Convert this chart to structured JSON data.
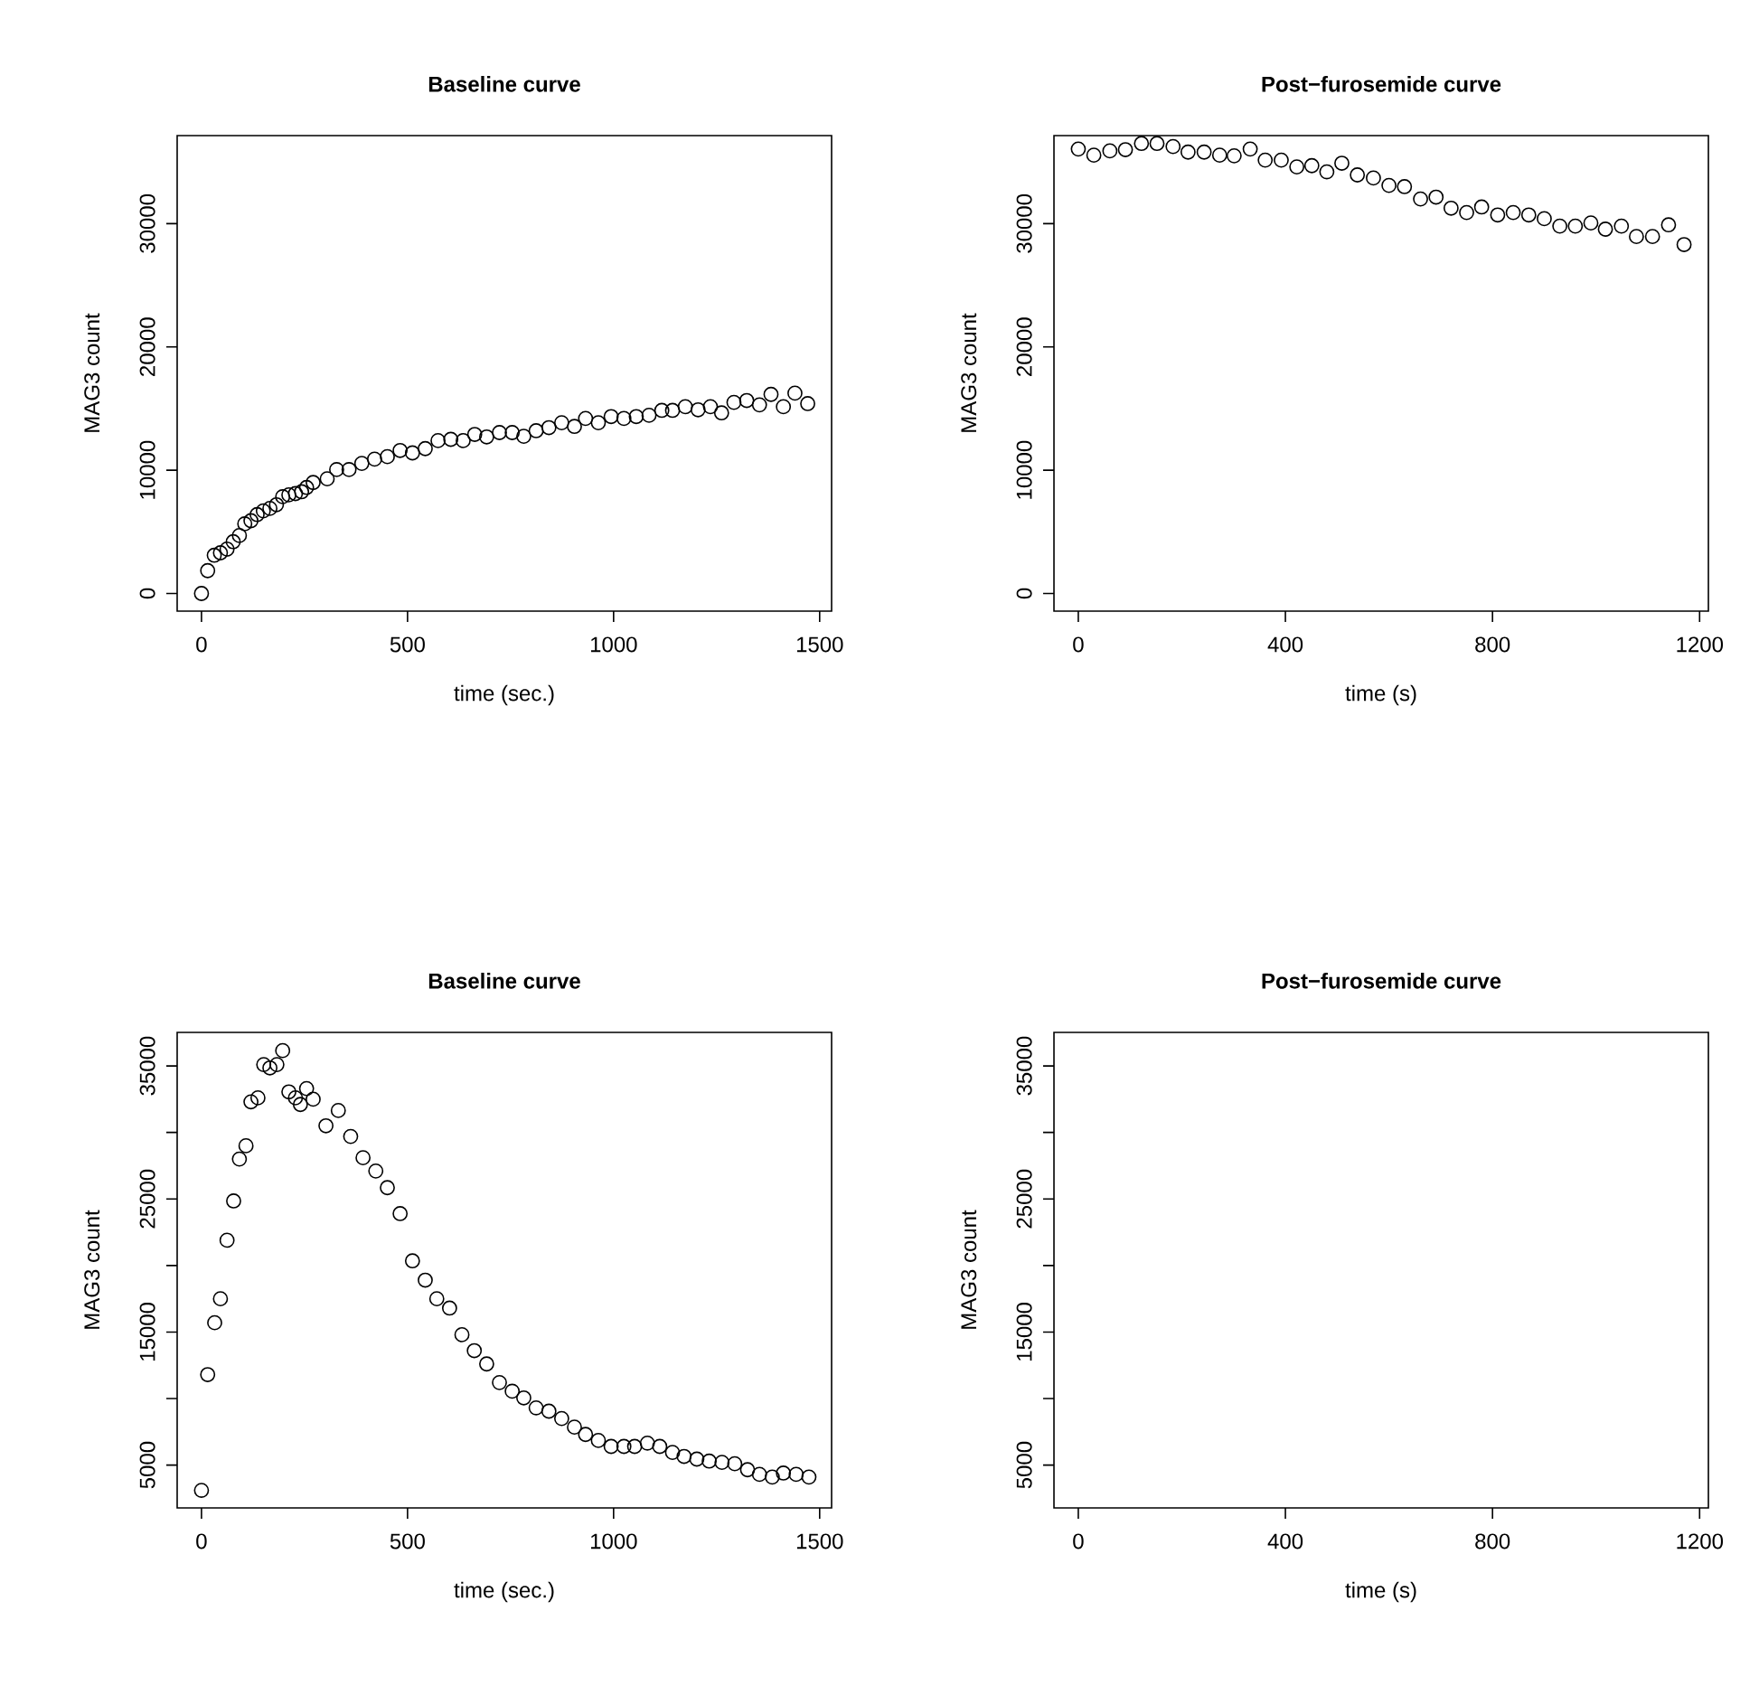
{
  "chart_data": [
    {
      "type": "scatter",
      "title": "Baseline curve",
      "xlabel": "time (sec.)",
      "ylabel": "MAG3 count",
      "marker": "circle",
      "color": "#000000",
      "x": [
        0,
        15,
        31,
        46,
        62,
        77,
        92,
        105,
        120,
        135,
        150,
        166,
        182,
        197,
        212,
        228,
        243,
        255,
        271,
        305,
        328,
        358,
        389,
        420,
        451,
        482,
        512,
        543,
        574,
        605,
        635,
        663,
        692,
        723,
        754,
        782,
        812,
        843,
        874,
        905,
        932,
        963,
        994,
        1025,
        1055,
        1086,
        1117,
        1143,
        1174,
        1205,
        1235,
        1262,
        1292,
        1323,
        1354,
        1382,
        1412,
        1440,
        1471
      ],
      "values": [
        0,
        1850,
        3100,
        3300,
        3600,
        4200,
        4700,
        5650,
        5900,
        6400,
        6700,
        6900,
        7200,
        7850,
        8000,
        8100,
        8250,
        8600,
        9000,
        9300,
        10050,
        10050,
        10550,
        10900,
        11100,
        11600,
        11400,
        11750,
        12400,
        12500,
        12400,
        12900,
        12700,
        13050,
        13050,
        12750,
        13200,
        13450,
        13850,
        13550,
        14200,
        13850,
        14350,
        14200,
        14350,
        14450,
        14850,
        14850,
        15150,
        14900,
        15150,
        14650,
        15500,
        15650,
        15300,
        16150,
        15150,
        16250,
        15400
      ],
      "xlim": [
        -59,
        1529
      ],
      "ylim": [
        -1430,
        37140
      ],
      "xticks": [
        0,
        500,
        1000,
        1500
      ],
      "yticks": [
        0,
        10000,
        20000,
        30000
      ]
    },
    {
      "type": "scatter",
      "title": "Post−furosemide curve",
      "xlabel": "time (s)",
      "ylabel": "MAG3 count",
      "marker": "circle",
      "color": "#000000",
      "x": [
        0,
        30,
        61,
        91,
        122,
        152,
        183,
        212,
        243,
        273,
        301,
        332,
        361,
        392,
        422,
        451,
        480,
        509,
        539,
        570,
        600,
        630,
        661,
        691,
        720,
        750,
        779,
        810,
        840,
        870,
        900,
        930,
        960,
        990,
        1018,
        1049,
        1078,
        1109,
        1140,
        1170
      ],
      "values": [
        36050,
        35550,
        35900,
        36000,
        36500,
        36500,
        36250,
        35800,
        35800,
        35550,
        35500,
        36050,
        35150,
        35150,
        34600,
        34700,
        34200,
        34900,
        33950,
        33700,
        33100,
        33000,
        32000,
        32150,
        31250,
        30900,
        31350,
        30700,
        30900,
        30700,
        30400,
        29800,
        29800,
        30050,
        29550,
        29800,
        28950,
        28950,
        29900,
        28300
      ],
      "xlim": [
        -47,
        1217
      ],
      "ylim": [
        -1430,
        37140
      ],
      "xticks": [
        0,
        400,
        800,
        1200
      ],
      "yticks": [
        0,
        10000,
        20000,
        30000
      ]
    },
    {
      "type": "scatter",
      "title": "Baseline curve",
      "xlabel": "time (sec.)",
      "ylabel": "MAG3 count",
      "marker": "circle",
      "color": "#000000",
      "x": [
        0,
        15,
        32,
        46,
        62,
        78,
        92,
        108,
        120,
        137,
        151,
        166,
        183,
        197,
        212,
        228,
        240,
        255,
        271,
        302,
        332,
        362,
        392,
        423,
        451,
        482,
        512,
        543,
        571,
        602,
        632,
        662,
        692,
        723,
        754,
        782,
        812,
        843,
        874,
        905,
        932,
        963,
        994,
        1025,
        1051,
        1082,
        1112,
        1143,
        1171,
        1202,
        1232,
        1263,
        1294,
        1325,
        1354,
        1385,
        1412,
        1443,
        1474
      ],
      "values": [
        3100,
        11800,
        15700,
        17500,
        21900,
        24850,
        28000,
        29000,
        32300,
        32600,
        35100,
        34850,
        35100,
        36150,
        33050,
        32600,
        32100,
        33300,
        32500,
        30500,
        31650,
        29700,
        28100,
        27100,
        25850,
        23900,
        20350,
        18900,
        17500,
        16800,
        14800,
        13600,
        12600,
        11200,
        10550,
        10050,
        9300,
        9050,
        8500,
        7850,
        7300,
        6850,
        6400,
        6400,
        6400,
        6650,
        6400,
        5950,
        5650,
        5450,
        5300,
        5200,
        5100,
        4650,
        4300,
        4100,
        4400,
        4300,
        4100
      ],
      "xlim": [
        -59,
        1529
      ],
      "ylim": [
        1780,
        37520
      ],
      "xticks": [
        0,
        500,
        1000,
        1500
      ],
      "yticks": [
        5000,
        {
          "value": 10000,
          "label": null
        },
        15000,
        {
          "value": 20000,
          "label": null
        },
        25000,
        {
          "value": 30000,
          "label": null
        },
        35000
      ]
    },
    {
      "type": "scatter",
      "title": "Post−furosemide curve",
      "xlabel": "time (s)",
      "ylabel": "MAG3 count",
      "xlim": [
        -47,
        1217
      ],
      "ylim": [
        1780,
        37520
      ],
      "xticks": [
        0,
        400,
        800,
        1200
      ],
      "yticks": [
        5000,
        {
          "value": 10000,
          "label": null
        },
        15000,
        {
          "value": 20000,
          "label": null
        },
        25000,
        {
          "value": 30000,
          "label": null
        },
        35000
      ]
    }
  ]
}
